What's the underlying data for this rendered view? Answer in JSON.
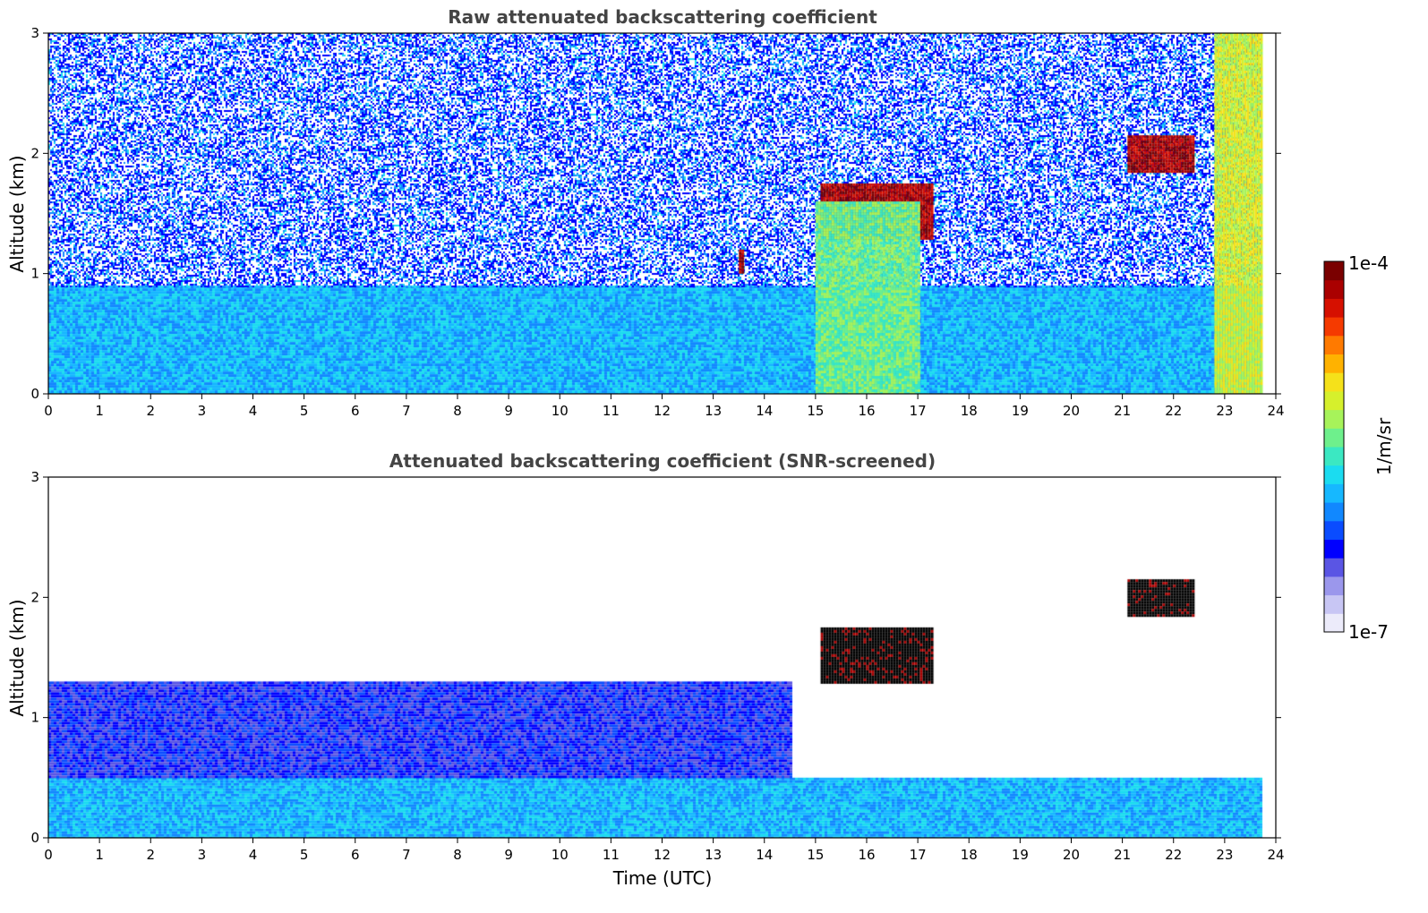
{
  "chart_data": [
    {
      "type": "heatmap",
      "title": "Raw attenuated backscattering coefficient",
      "xlabel": "",
      "ylabel": "Altitude (km)",
      "xlim": [
        0,
        24
      ],
      "ylim": [
        0,
        3
      ],
      "xticks": [
        "0",
        "1",
        "2",
        "3",
        "4",
        "5",
        "6",
        "7",
        "8",
        "9",
        "10",
        "11",
        "12",
        "13",
        "14",
        "15",
        "16",
        "17",
        "18",
        "19",
        "20",
        "21",
        "22",
        "23",
        "24"
      ],
      "yticks": [
        "0",
        "1",
        "2",
        "3"
      ],
      "features": [
        {
          "desc": "boundary layer aerosol",
          "x_range": [
            0,
            23.7
          ],
          "y_range": [
            0,
            0.9
          ],
          "level": "low-mid"
        },
        {
          "desc": "noise",
          "x_range": [
            0,
            23.7
          ],
          "y_range": [
            0.9,
            3.0
          ],
          "level": "noise"
        },
        {
          "desc": "cloud",
          "x_range": [
            13.5,
            13.6
          ],
          "y_range": [
            1.0,
            1.2
          ],
          "level": "high"
        },
        {
          "desc": "cloud",
          "x_range": [
            15.1,
            17.3
          ],
          "y_range": [
            1.3,
            1.75
          ],
          "level": "high"
        },
        {
          "desc": "precipitation streaks",
          "x_range": [
            15.0,
            17.0
          ],
          "y_range": [
            0,
            1.6
          ],
          "level": "mid"
        },
        {
          "desc": "cloud",
          "x_range": [
            21.1,
            22.4
          ],
          "y_range": [
            1.85,
            2.15
          ],
          "level": "high"
        },
        {
          "desc": "aerosol/cloud layer",
          "x_range": [
            22.8,
            23.7
          ],
          "y_range": [
            0,
            3.0
          ],
          "level": "mid-high"
        }
      ]
    },
    {
      "type": "heatmap",
      "title": "Attenuated backscattering coefficient (SNR-screened)",
      "xlabel": "Time (UTC)",
      "ylabel": "Altitude (km)",
      "xlim": [
        0,
        24
      ],
      "ylim": [
        0,
        3
      ],
      "xticks": [
        "0",
        "1",
        "2",
        "3",
        "4",
        "5",
        "6",
        "7",
        "8",
        "9",
        "10",
        "11",
        "12",
        "13",
        "14",
        "15",
        "16",
        "17",
        "18",
        "19",
        "20",
        "21",
        "22",
        "23",
        "24"
      ],
      "yticks": [
        "0",
        "1",
        "2",
        "3"
      ],
      "features": [
        {
          "desc": "boundary layer aerosol",
          "x_range": [
            0,
            23.7
          ],
          "y_range": [
            0,
            0.5
          ],
          "level": "low-mid"
        },
        {
          "desc": "screened layer",
          "x_range": [
            0,
            14.5
          ],
          "y_range": [
            0.5,
            1.3
          ],
          "level": "low"
        },
        {
          "desc": "cloud",
          "x_range": [
            15.1,
            17.3
          ],
          "y_range": [
            1.3,
            1.75
          ],
          "level": "saturated"
        },
        {
          "desc": "cloud",
          "x_range": [
            21.1,
            22.4
          ],
          "y_range": [
            1.85,
            2.15
          ],
          "level": "saturated"
        }
      ]
    }
  ],
  "colorbar": {
    "label": "1/m/sr",
    "max_label": "1e-4",
    "min_label": "1e-7",
    "colormap": "jet",
    "colors": [
      "#ecebfa",
      "#c8c6f4",
      "#9b97ec",
      "#5a55e4",
      "#0000ff",
      "#0a4cff",
      "#1188ff",
      "#16b8ff",
      "#1bdcf0",
      "#3be8c2",
      "#6ef08c",
      "#a7f35a",
      "#d6f02c",
      "#f5e11a",
      "#ffb200",
      "#ff7a00",
      "#f53a00",
      "#d61000",
      "#aa0000",
      "#7a0000"
    ]
  }
}
